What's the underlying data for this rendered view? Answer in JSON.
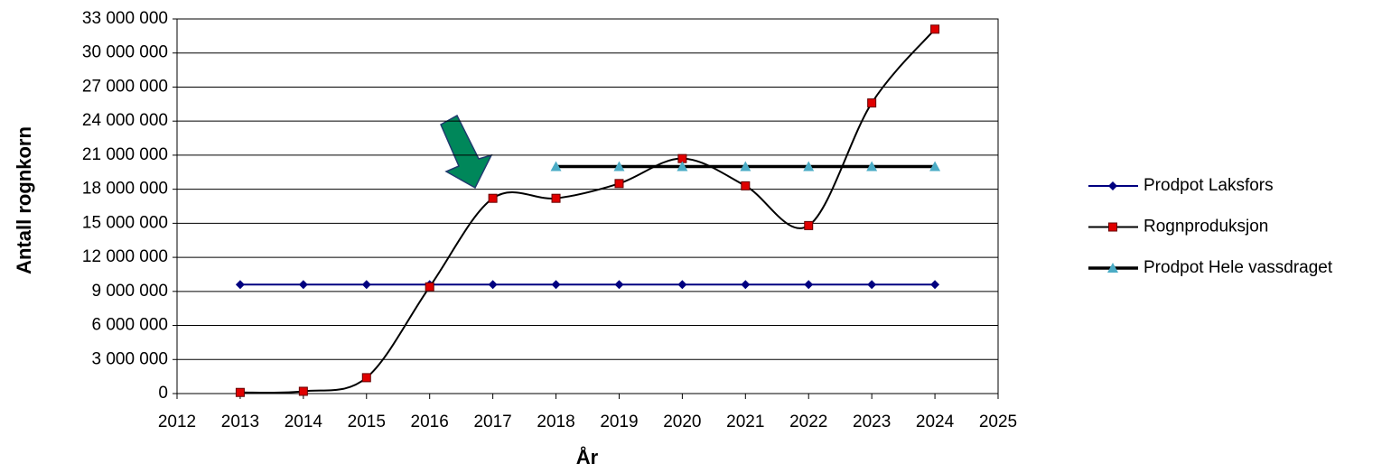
{
  "chart_data": {
    "type": "line",
    "x_label": "År",
    "y_label": "Antall rognkorn",
    "x": [
      2013,
      2014,
      2015,
      2016,
      2017,
      2018,
      2019,
      2020,
      2021,
      2022,
      2023,
      2024
    ],
    "xlim": [
      2012,
      2025
    ],
    "xticks": [
      2012,
      2013,
      2014,
      2015,
      2016,
      2017,
      2018,
      2019,
      2020,
      2021,
      2022,
      2023,
      2024,
      2025
    ],
    "ylim": [
      0,
      33000000
    ],
    "yticks": [
      0,
      {
        "value": 3000000,
        "label": "3 000 000"
      },
      {
        "value": 6000000,
        "label": "6 000 000"
      },
      {
        "value": 9000000,
        "label": "9 000 000"
      },
      {
        "value": 12000000,
        "label": "12 000 000"
      },
      {
        "value": 15000000,
        "label": "15 000 000"
      },
      {
        "value": 18000000,
        "label": "18 000 000"
      },
      {
        "value": 21000000,
        "label": "21 000 000"
      },
      {
        "value": 24000000,
        "label": "24 000 000"
      },
      {
        "value": 27000000,
        "label": "27 000 000"
      },
      {
        "value": 30000000,
        "label": "30 000 000"
      },
      {
        "value": 33000000,
        "label": "33 000 000"
      }
    ],
    "grid": true,
    "legend": "right",
    "series": [
      {
        "name": "Prodpot Laksfors",
        "color": "#000080",
        "marker": "diamond",
        "marker_color": "#000080",
        "line_width": 2,
        "smooth": false,
        "values": [
          9600000,
          9600000,
          9600000,
          9600000,
          9600000,
          9600000,
          9600000,
          9600000,
          9600000,
          9600000,
          9600000,
          9600000
        ]
      },
      {
        "name": "Rognproduksjon",
        "color": "#000000",
        "marker": "square",
        "marker_color": "#e00000",
        "line_width": 2,
        "smooth": true,
        "values": [
          100000,
          200000,
          1400000,
          9400000,
          17200000,
          17200000,
          18500000,
          20700000,
          18300000,
          14800000,
          25600000,
          32100000
        ]
      },
      {
        "name": "Prodpot Hele vassdraget",
        "color": "#000000",
        "marker": "triangle",
        "marker_color": "#4bacc6",
        "line_width": 3.5,
        "smooth": false,
        "values": [
          null,
          null,
          null,
          null,
          null,
          20000000,
          20000000,
          20000000,
          20000000,
          20000000,
          20000000,
          20000000
        ]
      }
    ]
  }
}
